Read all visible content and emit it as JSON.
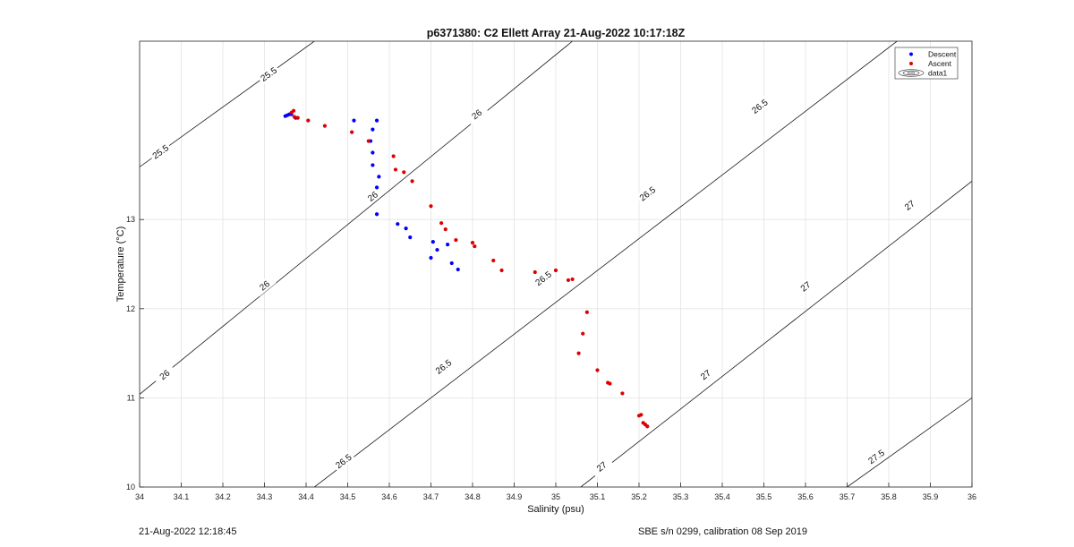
{
  "chart_data": {
    "type": "scatter",
    "title": "p6371380: C2 Ellett Array 21-Aug-2022 10:17:18Z",
    "xlabel": "Salinity (psu)",
    "ylabel": "Temperature (°C)",
    "xlim": [
      34,
      36
    ],
    "ylim": [
      10,
      15
    ],
    "x_ticks": [
      "34",
      "34.1",
      "34.2",
      "34.3",
      "34.4",
      "34.5",
      "34.6",
      "34.7",
      "34.8",
      "34.9",
      "35",
      "35.1",
      "35.2",
      "35.3",
      "35.4",
      "35.5",
      "35.6",
      "35.7",
      "35.8",
      "35.9",
      "36"
    ],
    "y_ticks": [
      "10",
      "11",
      "12",
      "13"
    ],
    "grid": true,
    "legend_position": "top-right",
    "legend": [
      "Descent",
      "Ascent",
      "data1"
    ],
    "series": [
      {
        "name": "Descent",
        "color": "#0000ff",
        "points": [
          [
            34.35,
            14.16
          ],
          [
            34.355,
            14.17
          ],
          [
            34.36,
            14.18
          ],
          [
            34.365,
            14.18
          ],
          [
            34.375,
            14.14
          ],
          [
            34.515,
            14.11
          ],
          [
            34.57,
            14.11
          ],
          [
            34.56,
            14.01
          ],
          [
            34.555,
            13.88
          ],
          [
            34.56,
            13.75
          ],
          [
            34.56,
            13.61
          ],
          [
            34.575,
            13.48
          ],
          [
            34.57,
            13.36
          ],
          [
            34.57,
            13.06
          ],
          [
            34.62,
            12.95
          ],
          [
            34.64,
            12.9
          ],
          [
            34.65,
            12.8
          ],
          [
            34.705,
            12.75
          ],
          [
            34.715,
            12.66
          ],
          [
            34.7,
            12.57
          ],
          [
            34.74,
            12.72
          ],
          [
            34.75,
            12.51
          ],
          [
            34.765,
            12.44
          ]
        ]
      },
      {
        "name": "Ascent",
        "color": "#dd0000",
        "points": [
          [
            34.365,
            14.2
          ],
          [
            34.37,
            14.22
          ],
          [
            34.372,
            14.15
          ],
          [
            34.38,
            14.14
          ],
          [
            34.405,
            14.11
          ],
          [
            34.445,
            14.05
          ],
          [
            34.51,
            13.98
          ],
          [
            34.55,
            13.88
          ],
          [
            34.61,
            13.71
          ],
          [
            34.615,
            13.56
          ],
          [
            34.635,
            13.53
          ],
          [
            34.655,
            13.43
          ],
          [
            34.7,
            13.15
          ],
          [
            34.725,
            12.96
          ],
          [
            34.735,
            12.89
          ],
          [
            34.76,
            12.77
          ],
          [
            34.8,
            12.74
          ],
          [
            34.805,
            12.7
          ],
          [
            34.85,
            12.54
          ],
          [
            34.87,
            12.43
          ],
          [
            34.95,
            12.41
          ],
          [
            35.0,
            12.43
          ],
          [
            35.03,
            12.32
          ],
          [
            35.04,
            12.33
          ],
          [
            35.075,
            11.96
          ],
          [
            35.065,
            11.72
          ],
          [
            35.055,
            11.5
          ],
          [
            35.1,
            11.31
          ],
          [
            35.125,
            11.17
          ],
          [
            35.13,
            11.16
          ],
          [
            35.16,
            11.05
          ],
          [
            35.2,
            10.8
          ],
          [
            35.205,
            10.81
          ],
          [
            35.21,
            10.72
          ],
          [
            35.215,
            10.7
          ],
          [
            35.22,
            10.68
          ]
        ]
      }
    ],
    "contours": [
      {
        "value": "25.5",
        "line": [
          [
            34.0,
            13.59
          ],
          [
            34.42,
            15.0
          ]
        ],
        "labels": [
          [
            34.05,
            13.76
          ],
          [
            34.31,
            14.63
          ]
        ]
      },
      {
        "value": "26",
        "line": [
          [
            34.0,
            11.04
          ],
          [
            35.04,
            15.0
          ]
        ],
        "labels": [
          [
            34.06,
            11.26
          ],
          [
            34.3,
            12.26
          ],
          [
            34.56,
            13.26
          ],
          [
            34.81,
            14.18
          ]
        ]
      },
      {
        "value": "26.5",
        "line": [
          [
            34.42,
            10.0
          ],
          [
            35.82,
            15.0
          ]
        ],
        "labels": [
          [
            34.49,
            10.29
          ],
          [
            34.73,
            11.35
          ],
          [
            34.97,
            12.34
          ],
          [
            35.22,
            13.29
          ],
          [
            35.49,
            14.27
          ]
        ]
      },
      {
        "value": "27",
        "line": [
          [
            35.06,
            10.0
          ],
          [
            36.0,
            13.43
          ]
        ],
        "labels": [
          [
            35.11,
            10.23
          ],
          [
            35.36,
            11.26
          ],
          [
            35.6,
            12.25
          ],
          [
            35.85,
            13.16
          ]
        ]
      },
      {
        "value": "27.5",
        "line": [
          [
            35.7,
            10.0
          ],
          [
            36.0,
            11.0
          ]
        ],
        "labels": [
          [
            35.77,
            10.34
          ]
        ]
      }
    ]
  },
  "footer": {
    "left": "21-Aug-2022 12:18:45",
    "right": "SBE s/n 0299, calibration 08 Sep 2019"
  }
}
